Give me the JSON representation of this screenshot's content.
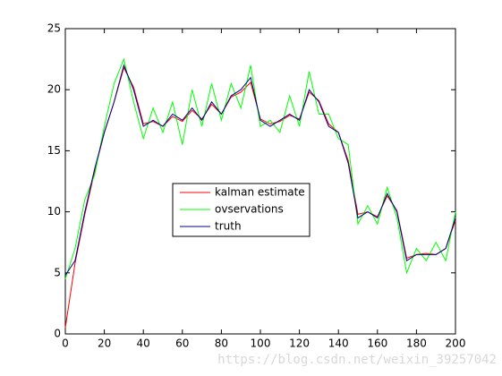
{
  "chart_data": {
    "type": "line",
    "x": [
      0,
      5,
      10,
      15,
      20,
      25,
      30,
      35,
      40,
      45,
      50,
      55,
      60,
      65,
      70,
      75,
      80,
      85,
      90,
      95,
      100,
      105,
      110,
      115,
      120,
      125,
      130,
      135,
      140,
      145,
      150,
      155,
      160,
      165,
      170,
      175,
      180,
      185,
      190,
      195,
      200
    ],
    "series": [
      {
        "name": "kalman estimate",
        "color": "#ff0000",
        "values": [
          0.5,
          5.8,
          9.8,
          13.3,
          16.5,
          19,
          21.8,
          20.2,
          17.2,
          17.4,
          17,
          17.8,
          17.4,
          18.3,
          17.6,
          18.8,
          18,
          19.4,
          19.8,
          20.6,
          17.6,
          17.2,
          17.4,
          17.9,
          17.6,
          19.8,
          19.1,
          17.2,
          16.5,
          14.2,
          9.8,
          10,
          9.6,
          11.3,
          10.1,
          6.2,
          6.5,
          6.6,
          6.5,
          7,
          9.3
        ]
      },
      {
        "name": "ovservations",
        "color": "#00ff00",
        "values": [
          4.5,
          7,
          11,
          13,
          17,
          20.5,
          22.5,
          19,
          16,
          18.5,
          16.5,
          19,
          15.5,
          20,
          17,
          20.5,
          17.5,
          20.5,
          18.5,
          22,
          17,
          17.5,
          16.5,
          19.5,
          17,
          21.5,
          18,
          18,
          16,
          15.5,
          9,
          10.5,
          9,
          12,
          9.5,
          5,
          7,
          6,
          7.5,
          6,
          10
        ]
      },
      {
        "name": "truth",
        "color": "#00008b",
        "values": [
          4.8,
          6,
          10,
          13.5,
          16.5,
          19,
          22,
          20,
          17,
          17.5,
          17,
          18,
          17.5,
          18.5,
          17.5,
          19,
          18,
          19.5,
          20,
          21,
          17.5,
          17,
          17.5,
          18,
          17.5,
          20,
          19,
          17,
          16.5,
          14,
          9.5,
          10,
          9.5,
          11.5,
          10,
          6,
          6.5,
          6.5,
          6.5,
          7,
          9.5
        ]
      }
    ],
    "xlim": [
      0,
      200
    ],
    "ylim": [
      0,
      25
    ],
    "xticks": [
      0,
      20,
      40,
      60,
      80,
      100,
      120,
      140,
      160,
      180,
      200
    ],
    "yticks": [
      0,
      5,
      10,
      15,
      20,
      25
    ],
    "legend": "center",
    "annotation": "https://blog.csdn.net/weixin_39257042"
  }
}
